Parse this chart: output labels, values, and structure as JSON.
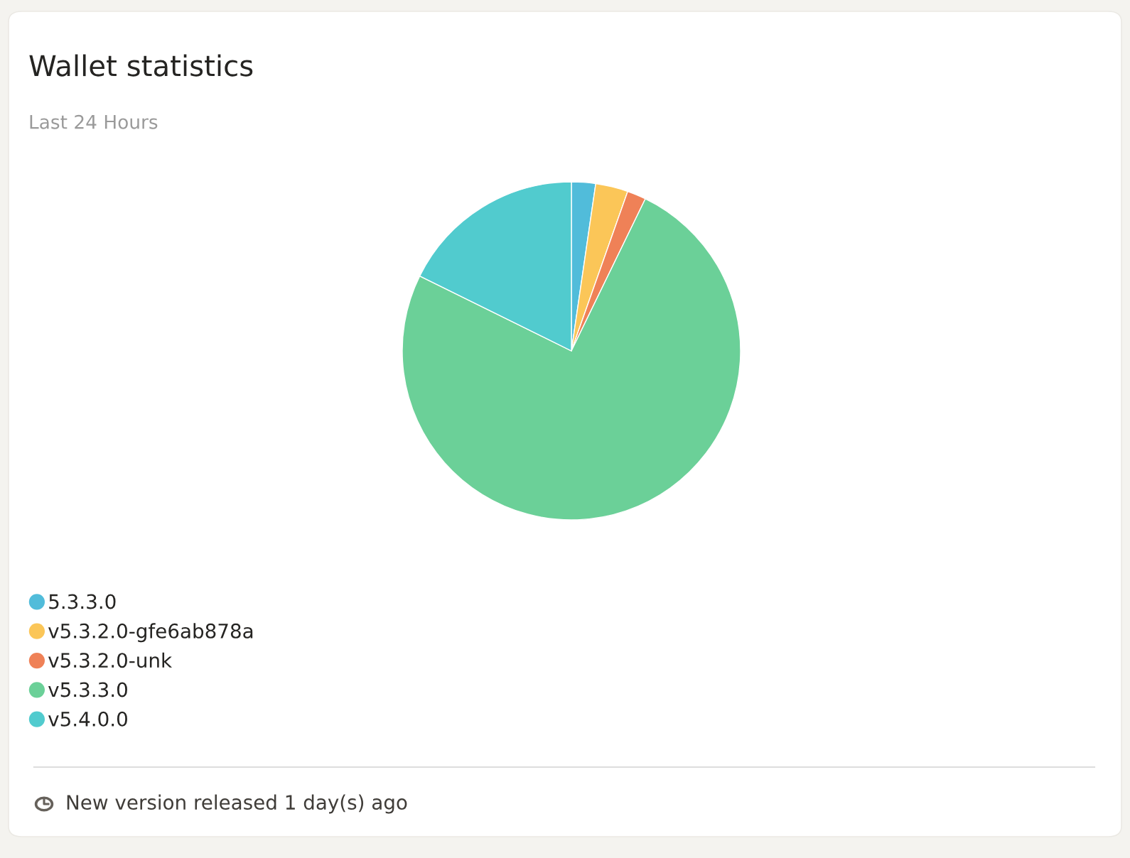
{
  "chart_data": {
    "type": "pie",
    "title": "Wallet statistics",
    "subtitle": "Last 24 Hours",
    "categories": [
      "5.3.3.0",
      "v5.3.2.0-gfe6ab878a",
      "v5.3.2.0-unk",
      "v5.3.3.0",
      "v5.4.0.0"
    ],
    "values": [
      2.3,
      3.1,
      1.8,
      75.1,
      17.7
    ],
    "colors": [
      "#51bcda",
      "#fbc658",
      "#ef8157",
      "#6bd098",
      "#51cbce"
    ],
    "legend": "bottom left",
    "annotations": [
      "New version released 1 day(s) ago"
    ]
  }
}
